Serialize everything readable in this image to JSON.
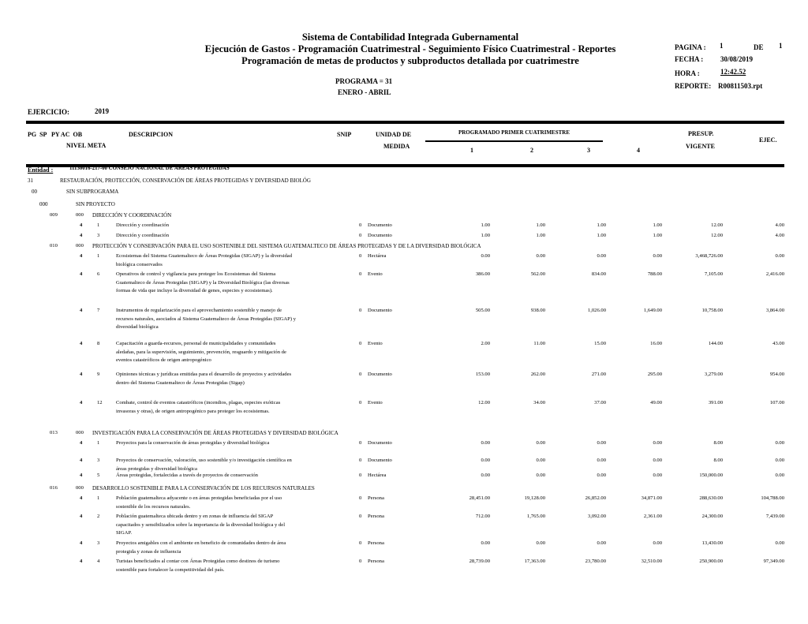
{
  "header": {
    "title1": "Sistema de Contabilidad Integrada Gubernamental",
    "title2": "Ejecución de Gastos - Programación Cuatrimestral - Seguimiento Físico Cuatrimestral - Reportes",
    "title3": "Programación de metas de productos y subproductos detallada por cuatrimestre",
    "programa": "PROGRAMA = 31",
    "periodo": "ENERO - ABRIL",
    "pagina_label": "PAGINA :",
    "pagina": "1",
    "de_label": "DE",
    "de": "1",
    "fecha_label": "FECHA   :",
    "fecha": "30/08/2019",
    "hora_label": "HORA    :",
    "hora": "12:42.52",
    "reporte_label": "REPORTE:",
    "reporte": "R00811503.rpt",
    "ejercicio_label": "EJERCICIO:",
    "ejercicio": "2019"
  },
  "columns": {
    "codes1": "PG  SP   PY AC  OB",
    "codes2": "NIVEL  META",
    "descripcion": "DESCRIPCION",
    "snip": "SNIP",
    "unidad1": "UNIDAD DE",
    "unidad2": "MEDIDA",
    "programado": "PROGRAMADO PRIMER CUATRIMESTRE",
    "q1": "1",
    "q2": "2",
    "q3": "3",
    "q4": "4",
    "presup1": "PRESUP.",
    "presup2": "VIGENTE",
    "ejec": "EJEC."
  },
  "hierarchy": {
    "entidad_label": "Entidad :",
    "entidad": "11130016-217-00 CONSEJO NACIONAL DE ÁREAS PROTEGIDAS",
    "programa_code": "31",
    "programa": "RESTAURACIÓN, PROTECCIÓN, CONSERVACIÓN DE ÁREAS PROTEGIDAS Y DIVERSIDAD BIOLÓG",
    "subprograma_code": "00",
    "subprograma": "SIN SUBPROGRAMA",
    "proyecto_code": "000",
    "proyecto": "SIN PROYECTO"
  },
  "rows": [
    {
      "type": "group",
      "ac": "009",
      "ob": "000",
      "title": "DIRECCIÓN Y COORDINACIÓN"
    },
    {
      "type": "item",
      "nivel": "4",
      "meta": "1",
      "desc": "Dirección y coordinación",
      "snip": "0",
      "unidad": "Documento",
      "q1": "1.00",
      "q2": "1.00",
      "q3": "1.00",
      "q4": "1.00",
      "presup": "12.00",
      "ejec": "4.00"
    },
    {
      "type": "item",
      "nivel": "4",
      "meta": "3",
      "desc": "Dirección y coordinación",
      "snip": "0",
      "unidad": "Documento",
      "q1": "1.00",
      "q2": "1.00",
      "q3": "1.00",
      "q4": "1.00",
      "presup": "12.00",
      "ejec": "4.00"
    },
    {
      "type": "group",
      "ac": "010",
      "ob": "000",
      "title": "PROTECCIÓN Y CONSERVACIÓN PARA EL USO SOSTENIBLE DEL SISTEMA GUATEMALTECO DE ÁREAS PROTEGIDAS Y DE LA DIVERSIDAD BIOLÓGICA"
    },
    {
      "type": "item",
      "nivel": "4",
      "meta": "1",
      "desc": "Ecosistemas del Sistema Guatemalteco de Áreas Protegidas (SIGAP) y la diversidad biológica conservados",
      "snip": "0",
      "unidad": "Hectárea",
      "q1": "0.00",
      "q2": "0.00",
      "q3": "0.00",
      "q4": "0.00",
      "presup": "3,468,726.00",
      "ejec": "0.00"
    },
    {
      "type": "item",
      "nivel": "4",
      "meta": "6",
      "desc": "Operativos de control y vigilancia para proteger los Ecosistemas del Sistema Guatemalteco de Áreas Protegidas (SIGAP) y la Diversidad Biológica (las diversas formas de vida que incluye la diversidad de genes, especies y ecosistemas).",
      "snip": "0",
      "unidad": "Evento",
      "q1": "386.00",
      "q2": "562.00",
      "q3": "834.00",
      "q4": "788.00",
      "presup": "7,105.00",
      "ejec": "2,416.00"
    },
    {
      "type": "item",
      "nivel": "4",
      "meta": "7",
      "desc": "Instrumentos de regularización para el aprovechamiento sostenible y manejo de recursos naturales, asociados al Sistema Guatemalteco de Áreas Protegidas (SIGAP) y diversidad biológica",
      "snip": "0",
      "unidad": "Documento",
      "q1": "505.00",
      "q2": "938.00",
      "q3": "1,026.00",
      "q4": "1,649.00",
      "presup": "10,758.00",
      "ejec": "3,864.00"
    },
    {
      "type": "item",
      "nivel": "4",
      "meta": "8",
      "desc": "Capacitación a guarda-recursos, personal de municipalidades y comunidades aledañas, para la supervisión, seguimiento, prevención, resguardo y mitigación de eventos catastróficos de origen antropogénico",
      "snip": "0",
      "unidad": "Evento",
      "q1": "2.00",
      "q2": "11.00",
      "q3": "15.00",
      "q4": "16.00",
      "presup": "144.00",
      "ejec": "43.00"
    },
    {
      "type": "item",
      "nivel": "4",
      "meta": "9",
      "desc": "Opiniones técnicas y jurídicas emitidas para el desarrollo de proyectos y actividades dentro del Sistema Guatemalteco de Áreas Protegidas (Sigap)",
      "snip": "0",
      "unidad": "Documento",
      "q1": "153.00",
      "q2": "262.00",
      "q3": "271.00",
      "q4": "295.00",
      "presup": "3,279.00",
      "ejec": "954.00"
    },
    {
      "type": "item",
      "nivel": "4",
      "meta": "12",
      "desc": "Combate, control de eventos catastróficos (incendios, plagas, especies exóticas invasoras y otras), de origen antropogénico para proteger los ecosistemas.",
      "snip": "0",
      "unidad": "Evento",
      "q1": "12.00",
      "q2": "34.00",
      "q3": "37.00",
      "q4": "49.00",
      "presup": "391.00",
      "ejec": "107.00"
    },
    {
      "type": "group",
      "ac": "013",
      "ob": "000",
      "title": "INVESTIGACIÓN PARA LA CONSERVACIÓN DE ÁREAS PROTEGIDAS Y DIVERSIDAD BIOLÓGICA"
    },
    {
      "type": "item",
      "nivel": "4",
      "meta": "1",
      "desc": "Proyectos para la conservación de áreas protegidas y diversidad biológica",
      "snip": "0",
      "unidad": "Documento",
      "q1": "0.00",
      "q2": "0.00",
      "q3": "0.00",
      "q4": "0.00",
      "presup": "8.00",
      "ejec": "0.00"
    },
    {
      "type": "item",
      "nivel": "4",
      "meta": "3",
      "desc": "Proyectos de conservación, valoración, uso sostenible y/o investigación científica en áreas protegidas y diversidad biológica",
      "snip": "0",
      "unidad": "Documento",
      "q1": "0.00",
      "q2": "0.00",
      "q3": "0.00",
      "q4": "0.00",
      "presup": "8.00",
      "ejec": "0.00"
    },
    {
      "type": "item",
      "nivel": "4",
      "meta": "5",
      "desc": "Áreas protegidas, fortalecidas a través de proyectos de conservación",
      "snip": "0",
      "unidad": "Hectárea",
      "q1": "0.00",
      "q2": "0.00",
      "q3": "0.00",
      "q4": "0.00",
      "presup": "150,000.00",
      "ejec": "0.00"
    },
    {
      "type": "group",
      "ac": "016",
      "ob": "000",
      "title": "DESARROLLO SOSTENIBLE PARA LA CONSERVACIÓN DE LOS RECURSOS NATURALES"
    },
    {
      "type": "item",
      "nivel": "4",
      "meta": "1",
      "desc": "Población guatemalteca adyacente o en áreas protegidas beneficiadas por el uso sostenible de los recursos naturales.",
      "snip": "0",
      "unidad": "Persona",
      "q1": "28,451.00",
      "q2": "19,128.00",
      "q3": "26,852.00",
      "q4": "34,871.00",
      "presup": "288,630.00",
      "ejec": "104,788.00"
    },
    {
      "type": "item",
      "nivel": "4",
      "meta": "2",
      "desc": "Población guatemalteca ubicada dentro y en zonas de influencia del SIGAP capacitados y sensibilizados sobre la importancia de la diversidad biológica y del SIGAP.",
      "snip": "0",
      "unidad": "Persona",
      "q1": "712.00",
      "q2": "1,765.00",
      "q3": "3,092.00",
      "q4": "2,361.00",
      "presup": "24,300.00",
      "ejec": "7,439.00"
    },
    {
      "type": "item",
      "nivel": "4",
      "meta": "3",
      "desc": "Proyectos amigables con el ambiente en beneficio de comunidades dentro de área protegida y zonas de influencia",
      "snip": "0",
      "unidad": "Persona",
      "q1": "0.00",
      "q2": "0.00",
      "q3": "0.00",
      "q4": "0.00",
      "presup": "13,430.00",
      "ejec": "0.00"
    },
    {
      "type": "item",
      "nivel": "4",
      "meta": "4",
      "desc": "Turistas beneficiados al contar con Áreas Protegidas como destinos de turismo sostenible para fortalecer la competitividad del país.",
      "snip": "0",
      "unidad": "Persona",
      "q1": "28,739.00",
      "q2": "17,363.00",
      "q3": "23,780.00",
      "q4": "32,510.00",
      "presup": "250,900.00",
      "ejec": "97,349.00"
    }
  ]
}
